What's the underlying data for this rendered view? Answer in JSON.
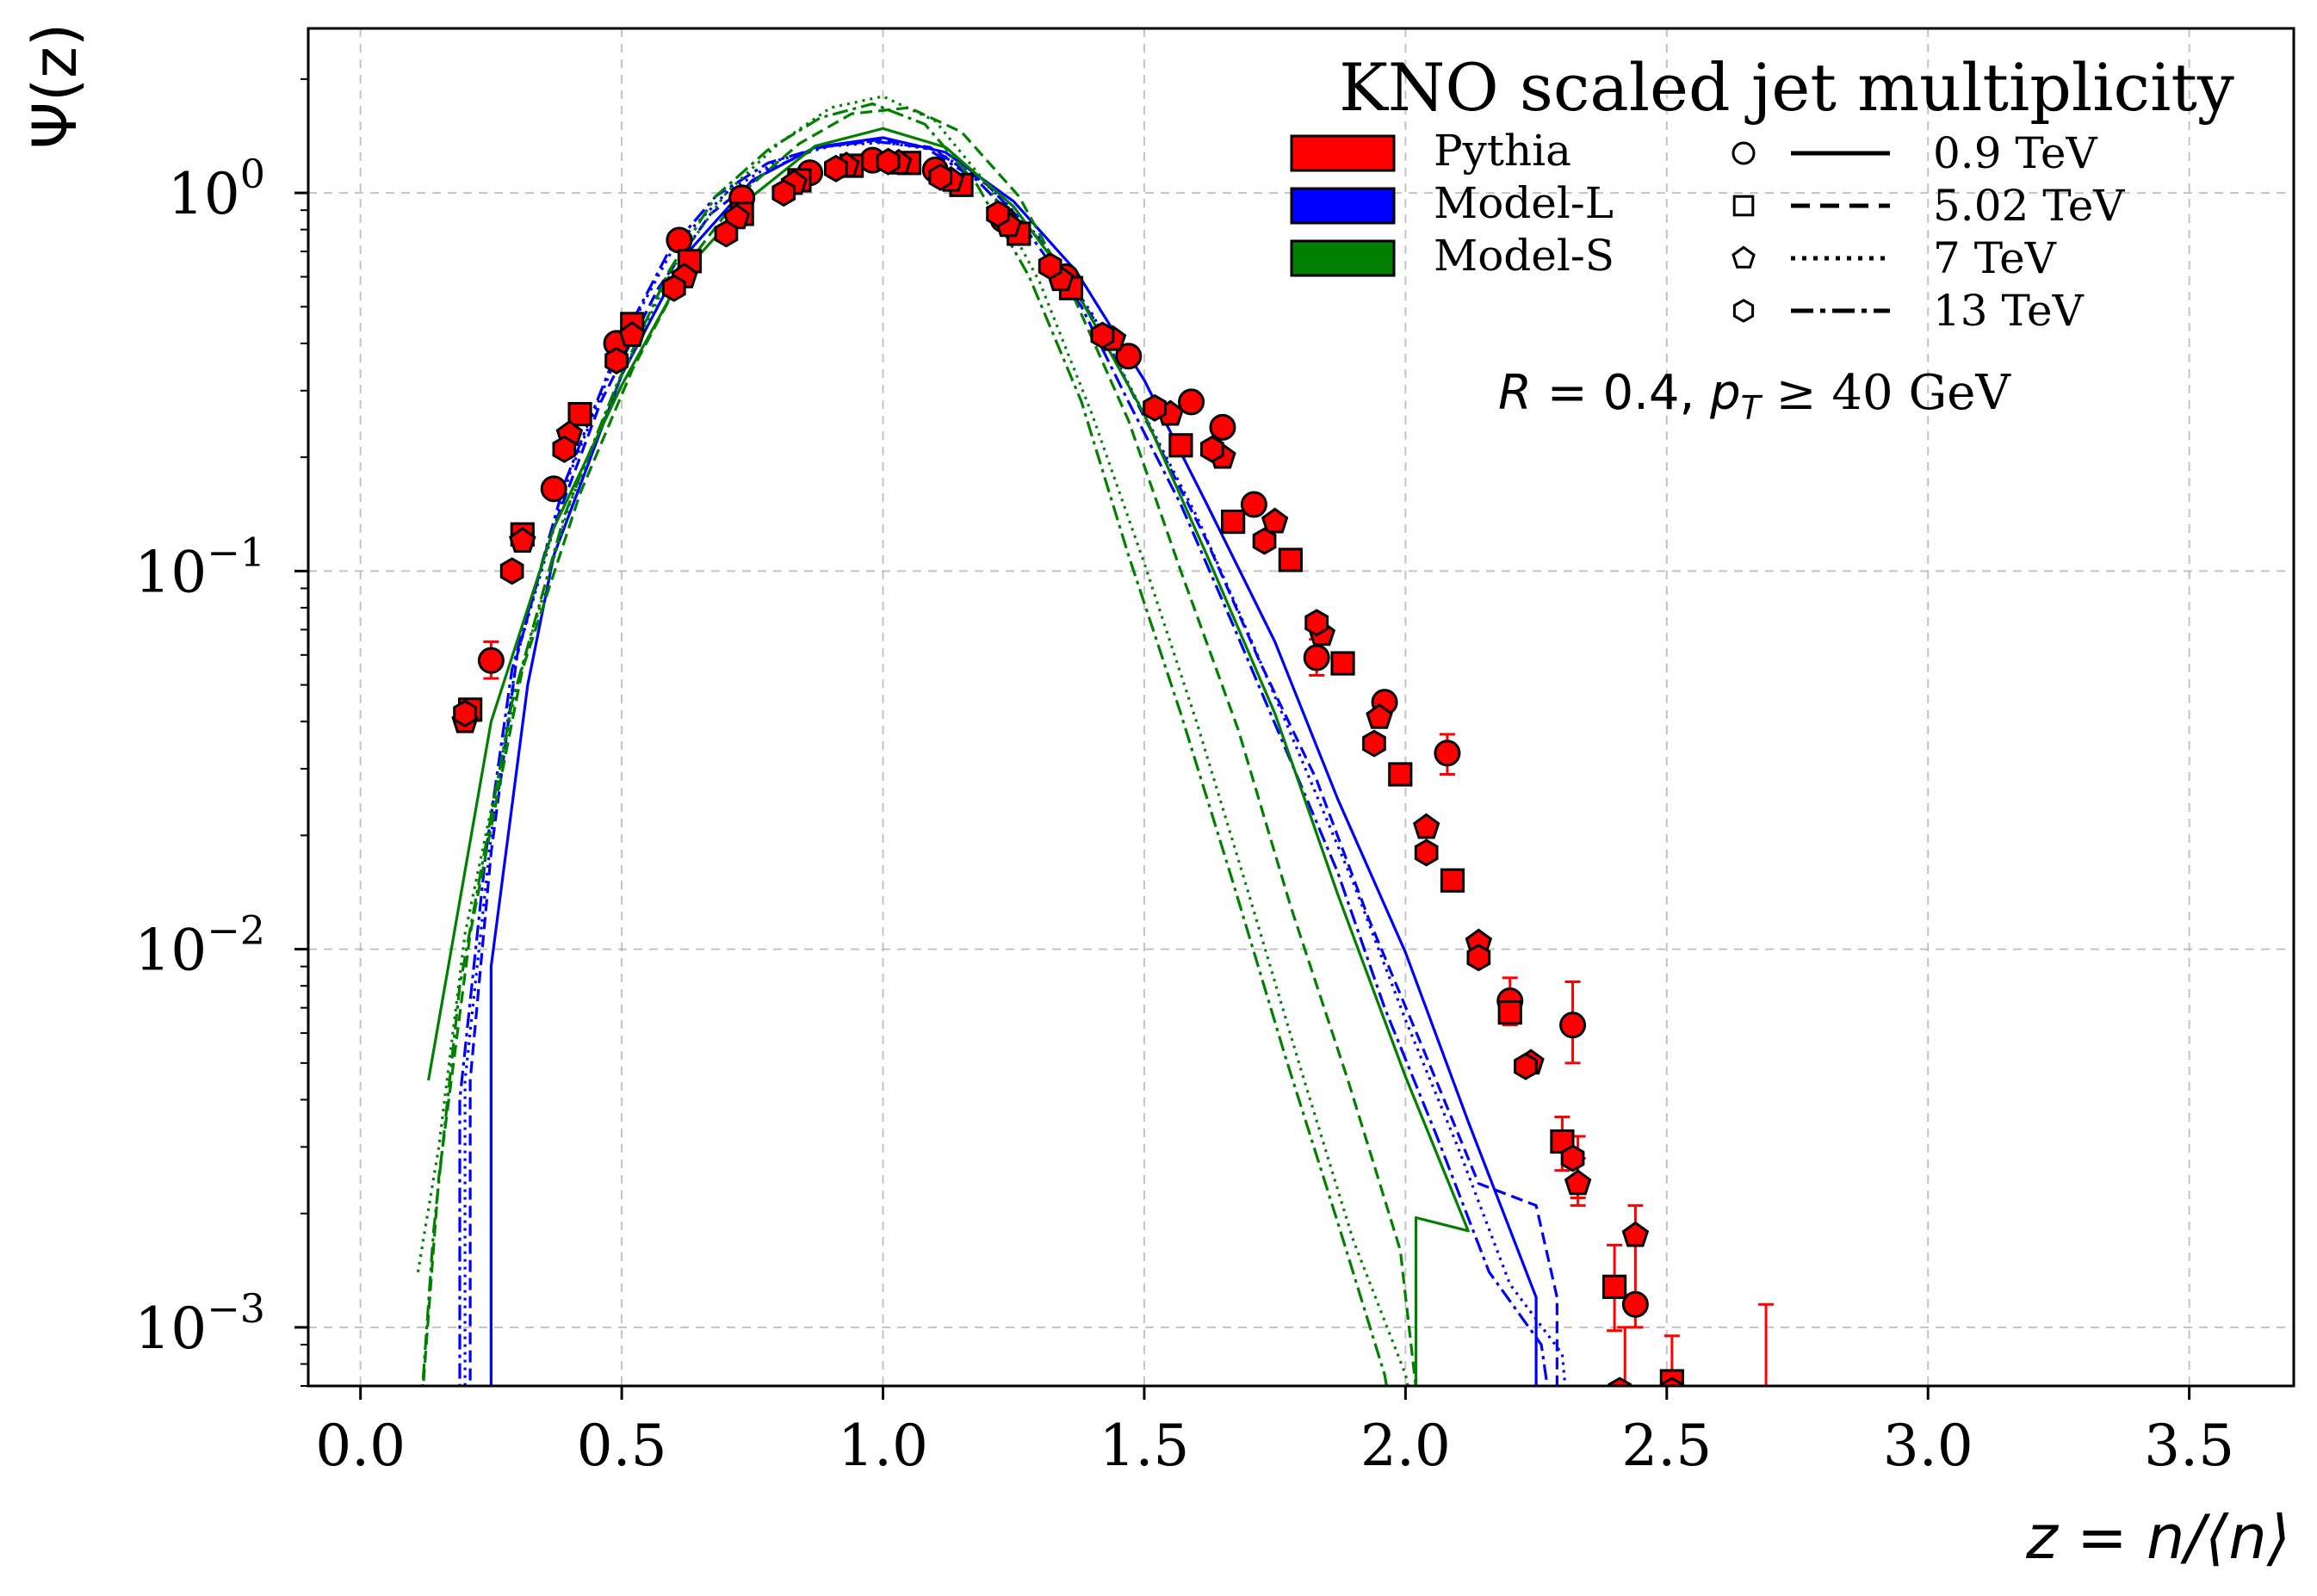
{
  "chart_data": {
    "type": "scatter",
    "title": "KNO scaled jet multiplicity",
    "xlabel": "z = n/⟨n⟩",
    "ylabel": "Ψ(z)",
    "xlim": [
      -0.1,
      3.7
    ],
    "ylim_log10": [
      -3.155,
      0.435
    ],
    "xticks": [
      0.0,
      0.5,
      1.0,
      1.5,
      2.0,
      2.5,
      3.0,
      3.5
    ],
    "xtick_labels": [
      "0.0",
      "0.5",
      "1.0",
      "1.5",
      "2.0",
      "2.5",
      "3.0",
      "3.5"
    ],
    "ytick_exponents": [
      0,
      -1,
      -2,
      -3
    ],
    "ytick_base": "10",
    "ytick_labels": [
      "0",
      "−1",
      "−2",
      "−3"
    ],
    "grid": true,
    "annotation": {
      "r_sym": "R",
      "r_val": " = 0.4, ",
      "pt_sym": "p",
      "pt_sub": "T",
      "pt_val": " ≥ 40 GeV"
    },
    "legend": {
      "placement": "top-right",
      "models": [
        {
          "label": "Pythia",
          "color": "#ff0000"
        },
        {
          "label": "Model-L",
          "color": "#0000ff"
        },
        {
          "label": "Model-S",
          "color": "#008000"
        }
      ],
      "energies": [
        {
          "label": "0.9 TeV",
          "marker": "circle",
          "dash": "solid"
        },
        {
          "label": "5.02 TeV",
          "marker": "square",
          "dash": "dashed"
        },
        {
          "label": "7 TeV",
          "marker": "pentagon",
          "dash": "dotted"
        },
        {
          "label": "13 TeV",
          "marker": "hexagon",
          "dash": "dashdot"
        }
      ]
    },
    "pythia_points": {
      "circle": [
        [
          0.25,
          0.058
        ],
        [
          0.37,
          0.165
        ],
        [
          0.49,
          0.4
        ],
        [
          0.61,
          0.75
        ],
        [
          0.73,
          0.97
        ],
        [
          0.86,
          1.13
        ],
        [
          0.98,
          1.22
        ],
        [
          1.1,
          1.15
        ],
        [
          1.23,
          0.85
        ],
        [
          1.35,
          0.6
        ],
        [
          1.47,
          0.37
        ],
        [
          1.59,
          0.28
        ],
        [
          1.65,
          0.24
        ],
        [
          1.71,
          0.15
        ],
        [
          1.83,
          0.059
        ],
        [
          1.96,
          0.045
        ],
        [
          2.08,
          0.033
        ],
        [
          2.2,
          0.0073
        ],
        [
          2.32,
          0.0063
        ],
        [
          2.44,
          0.00115
        ]
      ],
      "square": [
        [
          0.21,
          0.043
        ],
        [
          0.31,
          0.125
        ],
        [
          0.42,
          0.26
        ],
        [
          0.52,
          0.45
        ],
        [
          0.63,
          0.66
        ],
        [
          0.73,
          0.88
        ],
        [
          0.84,
          1.08
        ],
        [
          0.94,
          1.18
        ],
        [
          1.05,
          1.2
        ],
        [
          1.15,
          1.05
        ],
        [
          1.26,
          0.78
        ],
        [
          1.36,
          0.56
        ],
        [
          1.57,
          0.215
        ],
        [
          1.67,
          0.135
        ],
        [
          1.78,
          0.107
        ],
        [
          1.88,
          0.057
        ],
        [
          1.99,
          0.029
        ],
        [
          2.09,
          0.0152
        ],
        [
          2.2,
          0.0068
        ],
        [
          2.3,
          0.0031
        ],
        [
          2.4,
          0.00128
        ],
        [
          2.51,
          0.00072
        ]
      ],
      "pentagon": [
        [
          0.2,
          0.04
        ],
        [
          0.31,
          0.12
        ],
        [
          0.4,
          0.23
        ],
        [
          0.52,
          0.42
        ],
        [
          0.62,
          0.6
        ],
        [
          0.72,
          0.86
        ],
        [
          0.83,
          1.06
        ],
        [
          0.93,
          1.18
        ],
        [
          1.03,
          1.2
        ],
        [
          1.13,
          1.08
        ],
        [
          1.24,
          0.82
        ],
        [
          1.34,
          0.59
        ],
        [
          1.44,
          0.41
        ],
        [
          1.55,
          0.26
        ],
        [
          1.65,
          0.2
        ],
        [
          1.75,
          0.135
        ],
        [
          1.84,
          0.068
        ],
        [
          1.95,
          0.041
        ],
        [
          2.04,
          0.021
        ],
        [
          2.14,
          0.0104
        ],
        [
          2.24,
          0.005
        ],
        [
          2.33,
          0.0024
        ],
        [
          2.44,
          0.00175
        ]
      ],
      "hexagon": [
        [
          0.2,
          0.042
        ],
        [
          0.29,
          0.1
        ],
        [
          0.39,
          0.21
        ],
        [
          0.49,
          0.36
        ],
        [
          0.6,
          0.56
        ],
        [
          0.7,
          0.78
        ],
        [
          0.81,
          1.0
        ],
        [
          0.91,
          1.16
        ],
        [
          1.01,
          1.21
        ],
        [
          1.11,
          1.1
        ],
        [
          1.22,
          0.88
        ],
        [
          1.32,
          0.64
        ],
        [
          1.42,
          0.42
        ],
        [
          1.52,
          0.27
        ],
        [
          1.63,
          0.21
        ],
        [
          1.73,
          0.12
        ],
        [
          1.83,
          0.073
        ],
        [
          1.94,
          0.035
        ],
        [
          2.04,
          0.018
        ],
        [
          2.14,
          0.0095
        ],
        [
          2.23,
          0.0049
        ],
        [
          2.32,
          0.0028
        ],
        [
          2.41,
          0.00068
        ],
        [
          2.51,
          0.00068
        ]
      ]
    },
    "error_bars": [
      [
        0.25,
        0.052,
        0.065
      ],
      [
        1.83,
        0.053,
        0.066
      ],
      [
        2.08,
        0.029,
        0.037
      ],
      [
        2.2,
        0.0063,
        0.0084
      ],
      [
        2.32,
        0.005,
        0.0082
      ],
      [
        2.3,
        0.0026,
        0.0036
      ],
      [
        2.33,
        0.0022,
        0.0032
      ],
      [
        2.33,
        0.0021,
        0.0028
      ],
      [
        2.4,
        0.00098,
        0.00165
      ],
      [
        2.44,
        0.001,
        0.0021
      ],
      [
        2.42,
        0.0004,
        0.001
      ],
      [
        2.51,
        0.00045,
        0.00095
      ],
      [
        2.69,
        0.0004,
        0.00115
      ]
    ],
    "series": [
      {
        "name": "Model-L 0.9 TeV",
        "color": "#0000ff",
        "dash": "solid",
        "points": [
          [
            0.25,
            0.0003
          ],
          [
            0.25,
            0.009
          ],
          [
            0.32,
            0.05
          ],
          [
            0.37,
            0.11
          ],
          [
            0.5,
            0.33
          ],
          [
            0.62,
            0.68
          ],
          [
            0.75,
            1.08
          ],
          [
            0.87,
            1.32
          ],
          [
            1.0,
            1.4
          ],
          [
            1.12,
            1.28
          ],
          [
            1.25,
            0.95
          ],
          [
            1.37,
            0.62
          ],
          [
            1.5,
            0.32
          ],
          [
            1.62,
            0.15
          ],
          [
            1.75,
            0.065
          ],
          [
            1.87,
            0.025
          ],
          [
            2.0,
            0.0098
          ],
          [
            2.12,
            0.0035
          ],
          [
            2.25,
            0.0012
          ],
          [
            2.25,
            0.0003
          ]
        ]
      },
      {
        "name": "Model-L 5.02 TeV",
        "color": "#0000ff",
        "dash": "dashed",
        "points": [
          [
            0.21,
            0.0003
          ],
          [
            0.21,
            0.0045
          ],
          [
            0.25,
            0.018
          ],
          [
            0.3,
            0.06
          ],
          [
            0.36,
            0.12
          ],
          [
            0.46,
            0.28
          ],
          [
            0.57,
            0.56
          ],
          [
            0.67,
            0.88
          ],
          [
            0.78,
            1.15
          ],
          [
            0.88,
            1.32
          ],
          [
            0.99,
            1.38
          ],
          [
            1.09,
            1.32
          ],
          [
            1.2,
            1.05
          ],
          [
            1.3,
            0.75
          ],
          [
            1.41,
            0.45
          ],
          [
            1.51,
            0.24
          ],
          [
            1.62,
            0.12
          ],
          [
            1.72,
            0.058
          ],
          [
            1.83,
            0.028
          ],
          [
            1.93,
            0.012
          ],
          [
            2.04,
            0.0052
          ],
          [
            2.14,
            0.0024
          ],
          [
            2.25,
            0.0021
          ],
          [
            2.29,
            0.0012
          ],
          [
            2.29,
            0.0003
          ]
        ]
      },
      {
        "name": "Model-L 7 TeV",
        "color": "#0000ff",
        "dash": "dotted",
        "points": [
          [
            0.2,
            0.0003
          ],
          [
            0.2,
            0.0045
          ],
          [
            0.25,
            0.02
          ],
          [
            0.3,
            0.06
          ],
          [
            0.4,
            0.18
          ],
          [
            0.5,
            0.4
          ],
          [
            0.6,
            0.72
          ],
          [
            0.7,
            1.0
          ],
          [
            0.8,
            1.22
          ],
          [
            0.9,
            1.33
          ],
          [
            1.0,
            1.36
          ],
          [
            1.1,
            1.3
          ],
          [
            1.2,
            1.05
          ],
          [
            1.3,
            0.76
          ],
          [
            1.4,
            0.48
          ],
          [
            1.5,
            0.26
          ],
          [
            1.6,
            0.14
          ],
          [
            1.7,
            0.068
          ],
          [
            1.8,
            0.032
          ],
          [
            1.9,
            0.015
          ],
          [
            2.0,
            0.0065
          ],
          [
            2.1,
            0.003
          ],
          [
            2.2,
            0.0013
          ],
          [
            2.3,
            0.00085
          ],
          [
            2.33,
            0.0003
          ]
        ]
      },
      {
        "name": "Model-L 13 TeV",
        "color": "#0000ff",
        "dash": "dashdot",
        "points": [
          [
            0.19,
            0.0003
          ],
          [
            0.19,
            0.004
          ],
          [
            0.24,
            0.018
          ],
          [
            0.29,
            0.055
          ],
          [
            0.39,
            0.17
          ],
          [
            0.49,
            0.38
          ],
          [
            0.59,
            0.7
          ],
          [
            0.68,
            0.98
          ],
          [
            0.78,
            1.2
          ],
          [
            0.88,
            1.32
          ],
          [
            0.98,
            1.37
          ],
          [
            1.08,
            1.32
          ],
          [
            1.18,
            1.08
          ],
          [
            1.28,
            0.78
          ],
          [
            1.38,
            0.5
          ],
          [
            1.47,
            0.28
          ],
          [
            1.57,
            0.15
          ],
          [
            1.67,
            0.072
          ],
          [
            1.77,
            0.034
          ],
          [
            1.87,
            0.016
          ],
          [
            1.96,
            0.007
          ],
          [
            2.06,
            0.0032
          ],
          [
            2.16,
            0.0014
          ],
          [
            2.26,
            0.0009
          ],
          [
            2.31,
            0.0003
          ]
        ]
      },
      {
        "name": "Model-S 0.9 TeV",
        "color": "#008000",
        "dash": "solid",
        "points": [
          [
            0.13,
            0.0045
          ],
          [
            0.25,
            0.04
          ],
          [
            0.37,
            0.13
          ],
          [
            0.5,
            0.31
          ],
          [
            0.62,
            0.62
          ],
          [
            0.75,
            0.98
          ],
          [
            0.87,
            1.33
          ],
          [
            1.0,
            1.48
          ],
          [
            1.12,
            1.32
          ],
          [
            1.25,
            0.92
          ],
          [
            1.37,
            0.55
          ],
          [
            1.5,
            0.26
          ],
          [
            1.62,
            0.11
          ],
          [
            1.75,
            0.042
          ],
          [
            1.87,
            0.014
          ],
          [
            2.0,
            0.0046
          ],
          [
            2.12,
            0.0018
          ],
          [
            2.02,
            0.00195
          ],
          [
            2.02,
            0.0003
          ]
        ]
      },
      {
        "name": "Model-S 5.02 TeV",
        "color": "#008000",
        "dash": "dashed",
        "points": [
          [
            0.1,
            0.0003
          ],
          [
            0.15,
            0.0025
          ],
          [
            0.21,
            0.011
          ],
          [
            0.31,
            0.055
          ],
          [
            0.42,
            0.16
          ],
          [
            0.52,
            0.34
          ],
          [
            0.63,
            0.66
          ],
          [
            0.73,
            1.0
          ],
          [
            0.84,
            1.35
          ],
          [
            0.94,
            1.62
          ],
          [
            1.05,
            1.68
          ],
          [
            1.15,
            1.45
          ],
          [
            1.26,
            0.98
          ],
          [
            1.36,
            0.55
          ],
          [
            1.47,
            0.25
          ],
          [
            1.57,
            0.1
          ],
          [
            1.68,
            0.038
          ],
          [
            1.78,
            0.013
          ],
          [
            1.89,
            0.0045
          ],
          [
            1.99,
            0.0016
          ],
          [
            2.05,
            0.0003
          ]
        ]
      },
      {
        "name": "Model-S 7 TeV",
        "color": "#008000",
        "dash": "dotted",
        "points": [
          [
            0.11,
            0.0014
          ],
          [
            0.15,
            0.003
          ],
          [
            0.2,
            0.011
          ],
          [
            0.3,
            0.05
          ],
          [
            0.4,
            0.15
          ],
          [
            0.5,
            0.33
          ],
          [
            0.6,
            0.64
          ],
          [
            0.7,
            1.0
          ],
          [
            0.8,
            1.35
          ],
          [
            0.9,
            1.68
          ],
          [
            1.0,
            1.8
          ],
          [
            1.1,
            1.55
          ],
          [
            1.2,
            1.05
          ],
          [
            1.3,
            0.58
          ],
          [
            1.4,
            0.26
          ],
          [
            1.5,
            0.105
          ],
          [
            1.6,
            0.04
          ],
          [
            1.7,
            0.014
          ],
          [
            1.8,
            0.0048
          ],
          [
            1.9,
            0.0017
          ],
          [
            2.0,
            0.00075
          ],
          [
            2.06,
            0.0003
          ]
        ]
      },
      {
        "name": "Model-S 13 TeV",
        "color": "#008000",
        "dash": "dashdot",
        "points": [
          [
            0.1,
            0.0003
          ],
          [
            0.14,
            0.0018
          ],
          [
            0.19,
            0.008
          ],
          [
            0.29,
            0.045
          ],
          [
            0.39,
            0.14
          ],
          [
            0.49,
            0.31
          ],
          [
            0.59,
            0.62
          ],
          [
            0.68,
            0.98
          ],
          [
            0.78,
            1.3
          ],
          [
            0.88,
            1.58
          ],
          [
            0.98,
            1.72
          ],
          [
            1.08,
            1.52
          ],
          [
            1.18,
            1.05
          ],
          [
            1.28,
            0.6
          ],
          [
            1.38,
            0.28
          ],
          [
            1.47,
            0.11
          ],
          [
            1.57,
            0.042
          ],
          [
            1.67,
            0.015
          ],
          [
            1.77,
            0.0052
          ],
          [
            1.87,
            0.0019
          ],
          [
            1.96,
            0.00075
          ],
          [
            2.01,
            0.0003
          ]
        ]
      }
    ]
  }
}
